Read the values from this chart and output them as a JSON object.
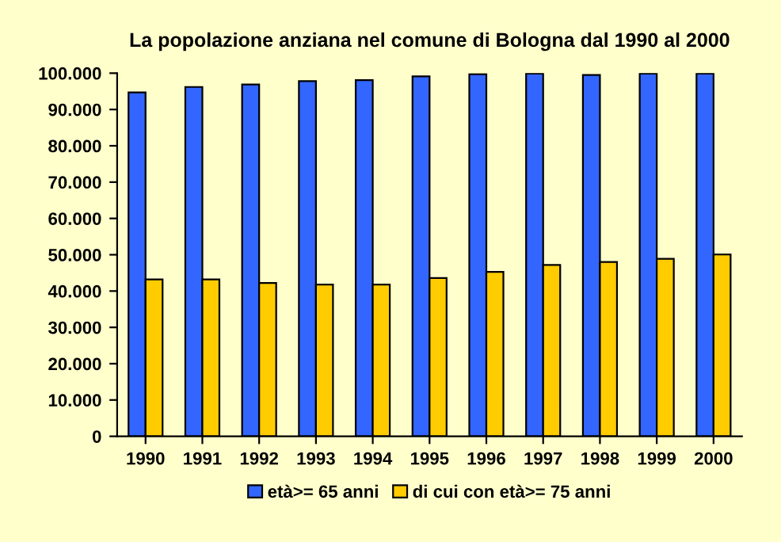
{
  "chart_data": {
    "type": "bar",
    "title": "La popolazione anziana nel comune di Bologna dal 1990 al 2000",
    "categories": [
      "1990",
      "1991",
      "1992",
      "1993",
      "1994",
      "1995",
      "1996",
      "1997",
      "1998",
      "1999",
      "2000"
    ],
    "series": [
      {
        "name": "età>= 65 anni",
        "color": "#3366ff",
        "values": [
          94700,
          96200,
          96900,
          97800,
          98100,
          99100,
          99700,
          99900,
          99500,
          99900,
          99900
        ]
      },
      {
        "name": "di cui con età>= 75 anni",
        "color": "#ffcc00",
        "values": [
          43200,
          43200,
          42200,
          41800,
          41800,
          43600,
          45300,
          47200,
          48000,
          48900,
          50100
        ]
      }
    ],
    "ylim": [
      0,
      100000
    ],
    "yticks": [
      {
        "value": 0,
        "label": "0"
      },
      {
        "value": 10000,
        "label": "10.000"
      },
      {
        "value": 20000,
        "label": "20.000"
      },
      {
        "value": 30000,
        "label": "30.000"
      },
      {
        "value": 40000,
        "label": "40.000"
      },
      {
        "value": 50000,
        "label": "50.000"
      },
      {
        "value": 60000,
        "label": "60.000"
      },
      {
        "value": 70000,
        "label": "70.000"
      },
      {
        "value": 80000,
        "label": "80.000"
      },
      {
        "value": 90000,
        "label": "90.000"
      },
      {
        "value": 100000,
        "label": "100.000"
      }
    ],
    "legend": "bottom"
  }
}
